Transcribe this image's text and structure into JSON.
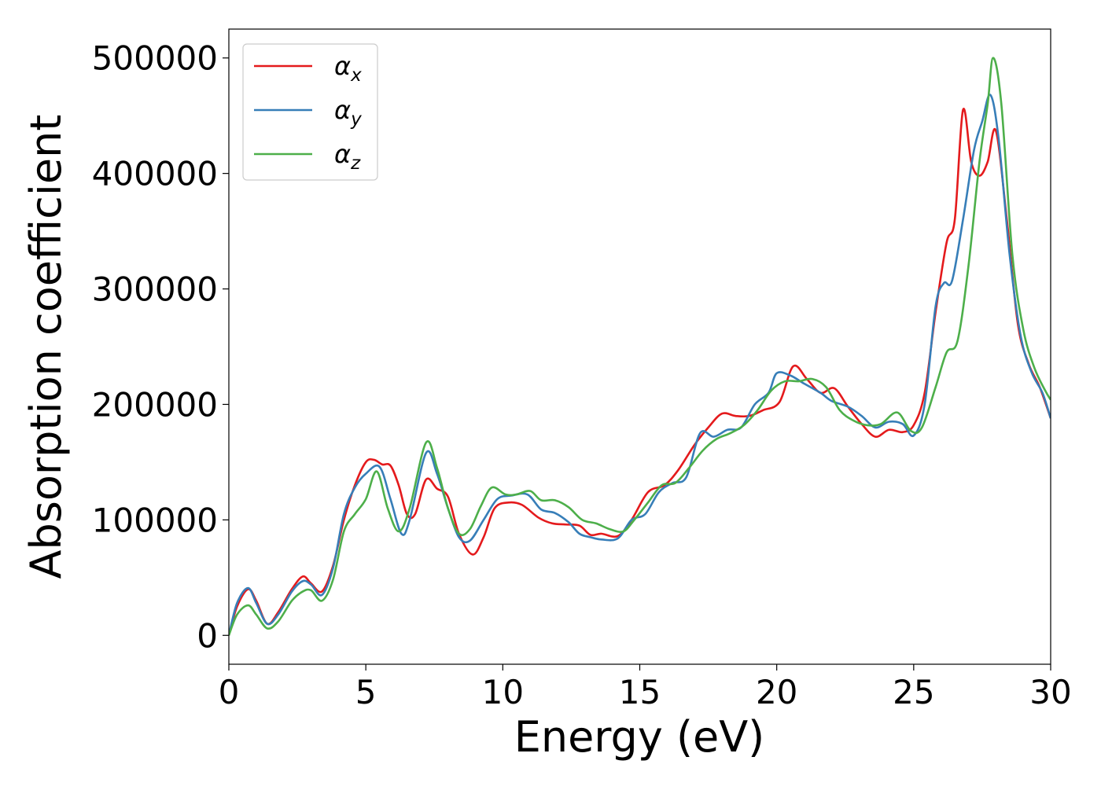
{
  "chart_data": {
    "type": "line",
    "xlabel": "Energy (eV)",
    "ylabel": "Absorption coefficient",
    "xlim": [
      0,
      30
    ],
    "ylim": [
      -25000,
      525000
    ],
    "xticks": [
      0,
      5,
      10,
      15,
      20,
      25,
      30
    ],
    "yticks": [
      0,
      100000,
      200000,
      300000,
      400000,
      500000
    ],
    "grid": false,
    "legend_position": "top-left",
    "series": [
      {
        "name": "α",
        "name_sub": "x",
        "color": "#e41a1c",
        "points": [
          [
            0,
            0
          ],
          [
            0.3,
            25000
          ],
          [
            0.7,
            40000
          ],
          [
            1.0,
            30000
          ],
          [
            1.4,
            10000
          ],
          [
            1.8,
            20000
          ],
          [
            2.3,
            40000
          ],
          [
            2.7,
            51000
          ],
          [
            3.0,
            45000
          ],
          [
            3.4,
            38000
          ],
          [
            3.8,
            60000
          ],
          [
            4.2,
            100000
          ],
          [
            4.6,
            130000
          ],
          [
            5.0,
            150000
          ],
          [
            5.3,
            152000
          ],
          [
            5.6,
            148000
          ],
          [
            5.9,
            147000
          ],
          [
            6.2,
            130000
          ],
          [
            6.5,
            105000
          ],
          [
            6.8,
            105000
          ],
          [
            7.2,
            135000
          ],
          [
            7.6,
            127000
          ],
          [
            8.0,
            120000
          ],
          [
            8.4,
            88000
          ],
          [
            8.9,
            70000
          ],
          [
            9.3,
            85000
          ],
          [
            9.7,
            110000
          ],
          [
            10.2,
            115000
          ],
          [
            10.7,
            113000
          ],
          [
            11.3,
            102000
          ],
          [
            11.8,
            97000
          ],
          [
            12.3,
            96000
          ],
          [
            12.8,
            95000
          ],
          [
            13.2,
            87000
          ],
          [
            13.6,
            88000
          ],
          [
            14.2,
            86000
          ],
          [
            14.7,
            100000
          ],
          [
            15.3,
            124000
          ],
          [
            15.9,
            130000
          ],
          [
            16.4,
            143000
          ],
          [
            17.0,
            165000
          ],
          [
            17.5,
            180000
          ],
          [
            18.0,
            192000
          ],
          [
            18.5,
            190000
          ],
          [
            19.0,
            190000
          ],
          [
            19.5,
            195000
          ],
          [
            20.1,
            202000
          ],
          [
            20.6,
            233000
          ],
          [
            21.1,
            222000
          ],
          [
            21.6,
            210000
          ],
          [
            22.1,
            214000
          ],
          [
            22.6,
            198000
          ],
          [
            23.1,
            183000
          ],
          [
            23.6,
            172000
          ],
          [
            24.1,
            178000
          ],
          [
            24.6,
            176000
          ],
          [
            25.0,
            182000
          ],
          [
            25.4,
            210000
          ],
          [
            25.8,
            280000
          ],
          [
            26.2,
            340000
          ],
          [
            26.5,
            360000
          ],
          [
            26.8,
            455000
          ],
          [
            27.1,
            410000
          ],
          [
            27.4,
            398000
          ],
          [
            27.7,
            410000
          ],
          [
            28.0,
            437000
          ],
          [
            28.4,
            360000
          ],
          [
            28.8,
            270000
          ],
          [
            29.2,
            235000
          ],
          [
            29.6,
            215000
          ],
          [
            30.0,
            188000
          ]
        ]
      },
      {
        "name": "α",
        "name_sub": "y",
        "color": "#377eb8",
        "points": [
          [
            0,
            0
          ],
          [
            0.3,
            28000
          ],
          [
            0.7,
            41000
          ],
          [
            1.0,
            28000
          ],
          [
            1.4,
            10000
          ],
          [
            1.8,
            18000
          ],
          [
            2.3,
            38000
          ],
          [
            2.7,
            47000
          ],
          [
            3.0,
            44000
          ],
          [
            3.4,
            35000
          ],
          [
            3.8,
            58000
          ],
          [
            4.2,
            105000
          ],
          [
            4.6,
            128000
          ],
          [
            5.0,
            140000
          ],
          [
            5.5,
            146000
          ],
          [
            5.9,
            118000
          ],
          [
            6.3,
            88000
          ],
          [
            6.6,
            100000
          ],
          [
            7.2,
            158000
          ],
          [
            7.6,
            140000
          ],
          [
            8.0,
            110000
          ],
          [
            8.4,
            85000
          ],
          [
            8.8,
            82000
          ],
          [
            9.3,
            100000
          ],
          [
            9.8,
            118000
          ],
          [
            10.3,
            121000
          ],
          [
            10.9,
            122000
          ],
          [
            11.4,
            109000
          ],
          [
            11.9,
            106000
          ],
          [
            12.4,
            98000
          ],
          [
            12.8,
            88000
          ],
          [
            13.2,
            85000
          ],
          [
            13.6,
            83000
          ],
          [
            14.2,
            84000
          ],
          [
            14.7,
            100000
          ],
          [
            15.2,
            105000
          ],
          [
            15.7,
            124000
          ],
          [
            16.2,
            132000
          ],
          [
            16.7,
            137000
          ],
          [
            17.2,
            175000
          ],
          [
            17.7,
            172000
          ],
          [
            18.2,
            178000
          ],
          [
            18.7,
            180000
          ],
          [
            19.2,
            200000
          ],
          [
            19.7,
            210000
          ],
          [
            20.0,
            227000
          ],
          [
            20.5,
            225000
          ],
          [
            21.0,
            218000
          ],
          [
            21.6,
            210000
          ],
          [
            22.0,
            203000
          ],
          [
            22.6,
            198000
          ],
          [
            23.1,
            190000
          ],
          [
            23.6,
            180000
          ],
          [
            24.1,
            185000
          ],
          [
            24.6,
            183000
          ],
          [
            25.0,
            173000
          ],
          [
            25.4,
            200000
          ],
          [
            25.8,
            285000
          ],
          [
            26.1,
            305000
          ],
          [
            26.4,
            307000
          ],
          [
            26.8,
            360000
          ],
          [
            27.2,
            420000
          ],
          [
            27.5,
            445000
          ],
          [
            27.8,
            468000
          ],
          [
            28.1,
            430000
          ],
          [
            28.5,
            330000
          ],
          [
            28.9,
            260000
          ],
          [
            29.3,
            228000
          ],
          [
            29.7,
            210000
          ],
          [
            30.0,
            188000
          ]
        ]
      },
      {
        "name": "α",
        "name_sub": "z",
        "color": "#4daf4a",
        "points": [
          [
            0,
            0
          ],
          [
            0.3,
            18000
          ],
          [
            0.7,
            26000
          ],
          [
            1.0,
            18000
          ],
          [
            1.4,
            6000
          ],
          [
            1.8,
            12000
          ],
          [
            2.3,
            30000
          ],
          [
            2.7,
            38000
          ],
          [
            3.0,
            39000
          ],
          [
            3.4,
            30000
          ],
          [
            3.8,
            48000
          ],
          [
            4.2,
            90000
          ],
          [
            4.6,
            105000
          ],
          [
            5.0,
            118000
          ],
          [
            5.4,
            142000
          ],
          [
            5.8,
            110000
          ],
          [
            6.2,
            90000
          ],
          [
            6.6,
            110000
          ],
          [
            7.2,
            167000
          ],
          [
            7.6,
            145000
          ],
          [
            8.0,
            110000
          ],
          [
            8.4,
            88000
          ],
          [
            8.8,
            92000
          ],
          [
            9.2,
            112000
          ],
          [
            9.6,
            128000
          ],
          [
            10.1,
            122000
          ],
          [
            10.5,
            122000
          ],
          [
            11.0,
            125000
          ],
          [
            11.4,
            117000
          ],
          [
            11.9,
            117000
          ],
          [
            12.4,
            111000
          ],
          [
            12.9,
            100000
          ],
          [
            13.4,
            97000
          ],
          [
            13.9,
            92000
          ],
          [
            14.4,
            90000
          ],
          [
            14.8,
            100000
          ],
          [
            15.3,
            115000
          ],
          [
            15.8,
            130000
          ],
          [
            16.3,
            132000
          ],
          [
            16.8,
            145000
          ],
          [
            17.3,
            160000
          ],
          [
            17.8,
            170000
          ],
          [
            18.3,
            175000
          ],
          [
            18.8,
            182000
          ],
          [
            19.3,
            195000
          ],
          [
            19.8,
            212000
          ],
          [
            20.3,
            220000
          ],
          [
            20.8,
            220000
          ],
          [
            21.3,
            222000
          ],
          [
            21.8,
            215000
          ],
          [
            22.3,
            195000
          ],
          [
            22.8,
            186000
          ],
          [
            23.3,
            182000
          ],
          [
            23.8,
            183000
          ],
          [
            24.4,
            193000
          ],
          [
            24.9,
            177000
          ],
          [
            25.3,
            180000
          ],
          [
            25.8,
            215000
          ],
          [
            26.2,
            245000
          ],
          [
            26.6,
            255000
          ],
          [
            27.0,
            320000
          ],
          [
            27.4,
            410000
          ],
          [
            27.7,
            460000
          ],
          [
            27.9,
            500000
          ],
          [
            28.2,
            460000
          ],
          [
            28.6,
            330000
          ],
          [
            29.0,
            265000
          ],
          [
            29.4,
            232000
          ],
          [
            29.8,
            212000
          ],
          [
            30.0,
            204000
          ]
        ]
      }
    ]
  }
}
